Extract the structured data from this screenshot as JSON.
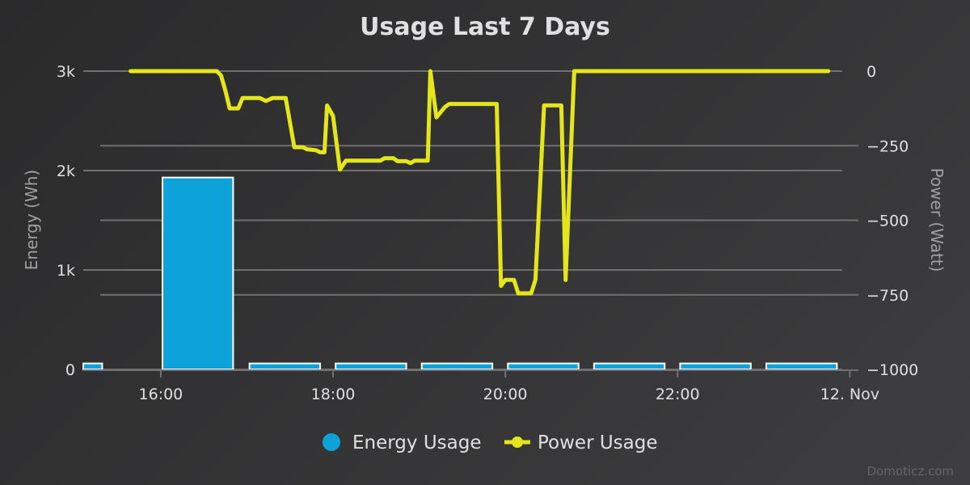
{
  "chart_data": {
    "type": "bar+line",
    "title": "Usage Last 7 Days",
    "credits": "Domoticz.com",
    "colors": {
      "energy": "#0ea3d8",
      "power": "#e4e61a",
      "grid": "#707073"
    },
    "x_axis": {
      "range": [
        15.1,
        24.1
      ],
      "tick_labels": [
        {
          "x": 16,
          "label": "16:00"
        },
        {
          "x": 18,
          "label": "18:00"
        },
        {
          "x": 20,
          "label": "20:00"
        },
        {
          "x": 22,
          "label": "22:00"
        },
        {
          "x": 24,
          "label": "12. Nov"
        }
      ]
    },
    "y_left": {
      "label": "Energy (Wh)",
      "range": [
        0,
        3000
      ],
      "ticks": [
        0,
        1000,
        2000,
        3000
      ],
      "tick_labels": [
        "0",
        "1k",
        "2k",
        "3k"
      ]
    },
    "y_right": {
      "label": "Power (Watt)",
      "range": [
        -1000,
        0
      ],
      "ticks": [
        0,
        -250,
        -500,
        -750,
        -1000
      ],
      "tick_labels": [
        "0",
        "−250",
        "−500",
        "−750",
        "−1000"
      ]
    },
    "legend": {
      "position": "bottom-center"
    },
    "series": [
      {
        "name": "Energy Usage",
        "type": "bar",
        "axis": "left",
        "bars": [
          {
            "x": 15.1,
            "w": 0.22,
            "value": 60
          },
          {
            "x": 16.02,
            "w": 0.82,
            "value": 1930
          },
          {
            "x": 17.03,
            "w": 0.82,
            "value": 60
          },
          {
            "x": 18.03,
            "w": 0.82,
            "value": 60
          },
          {
            "x": 19.03,
            "w": 0.82,
            "value": 60
          },
          {
            "x": 20.03,
            "w": 0.82,
            "value": 60
          },
          {
            "x": 21.03,
            "w": 0.82,
            "value": 60
          },
          {
            "x": 22.03,
            "w": 0.82,
            "value": 60
          },
          {
            "x": 23.03,
            "w": 0.82,
            "value": 60
          },
          {
            "x": 24.03,
            "w": 0.52,
            "value": 60
          }
        ]
      },
      {
        "name": "Power Usage",
        "type": "line",
        "axis": "right",
        "points": [
          [
            15.65,
            0
          ],
          [
            16.65,
            0
          ],
          [
            16.7,
            -15
          ],
          [
            16.75,
            -65
          ],
          [
            16.8,
            -125
          ],
          [
            16.9,
            -125
          ],
          [
            16.95,
            -90
          ],
          [
            17.15,
            -90
          ],
          [
            17.22,
            -100
          ],
          [
            17.3,
            -90
          ],
          [
            17.45,
            -90
          ],
          [
            17.55,
            -255
          ],
          [
            17.65,
            -255
          ],
          [
            17.7,
            -262
          ],
          [
            17.8,
            -265
          ],
          [
            17.85,
            -272
          ],
          [
            17.9,
            -272
          ],
          [
            17.93,
            -115
          ],
          [
            18.0,
            -150
          ],
          [
            18.08,
            -330
          ],
          [
            18.15,
            -300
          ],
          [
            18.55,
            -300
          ],
          [
            18.6,
            -292
          ],
          [
            18.7,
            -292
          ],
          [
            18.75,
            -302
          ],
          [
            18.85,
            -302
          ],
          [
            18.9,
            -308
          ],
          [
            18.95,
            -300
          ],
          [
            19.1,
            -300
          ],
          [
            19.13,
            0
          ],
          [
            19.2,
            -155
          ],
          [
            19.3,
            -120
          ],
          [
            19.35,
            -110
          ],
          [
            19.45,
            -110
          ],
          [
            19.9,
            -110
          ],
          [
            19.95,
            -720
          ],
          [
            20.0,
            -700
          ],
          [
            20.1,
            -700
          ],
          [
            20.15,
            -745
          ],
          [
            20.3,
            -745
          ],
          [
            20.35,
            -700
          ],
          [
            20.45,
            -115
          ],
          [
            20.65,
            -115
          ],
          [
            20.7,
            -700
          ],
          [
            20.8,
            0
          ],
          [
            22.4,
            0
          ],
          [
            23.75,
            0
          ]
        ]
      }
    ]
  }
}
